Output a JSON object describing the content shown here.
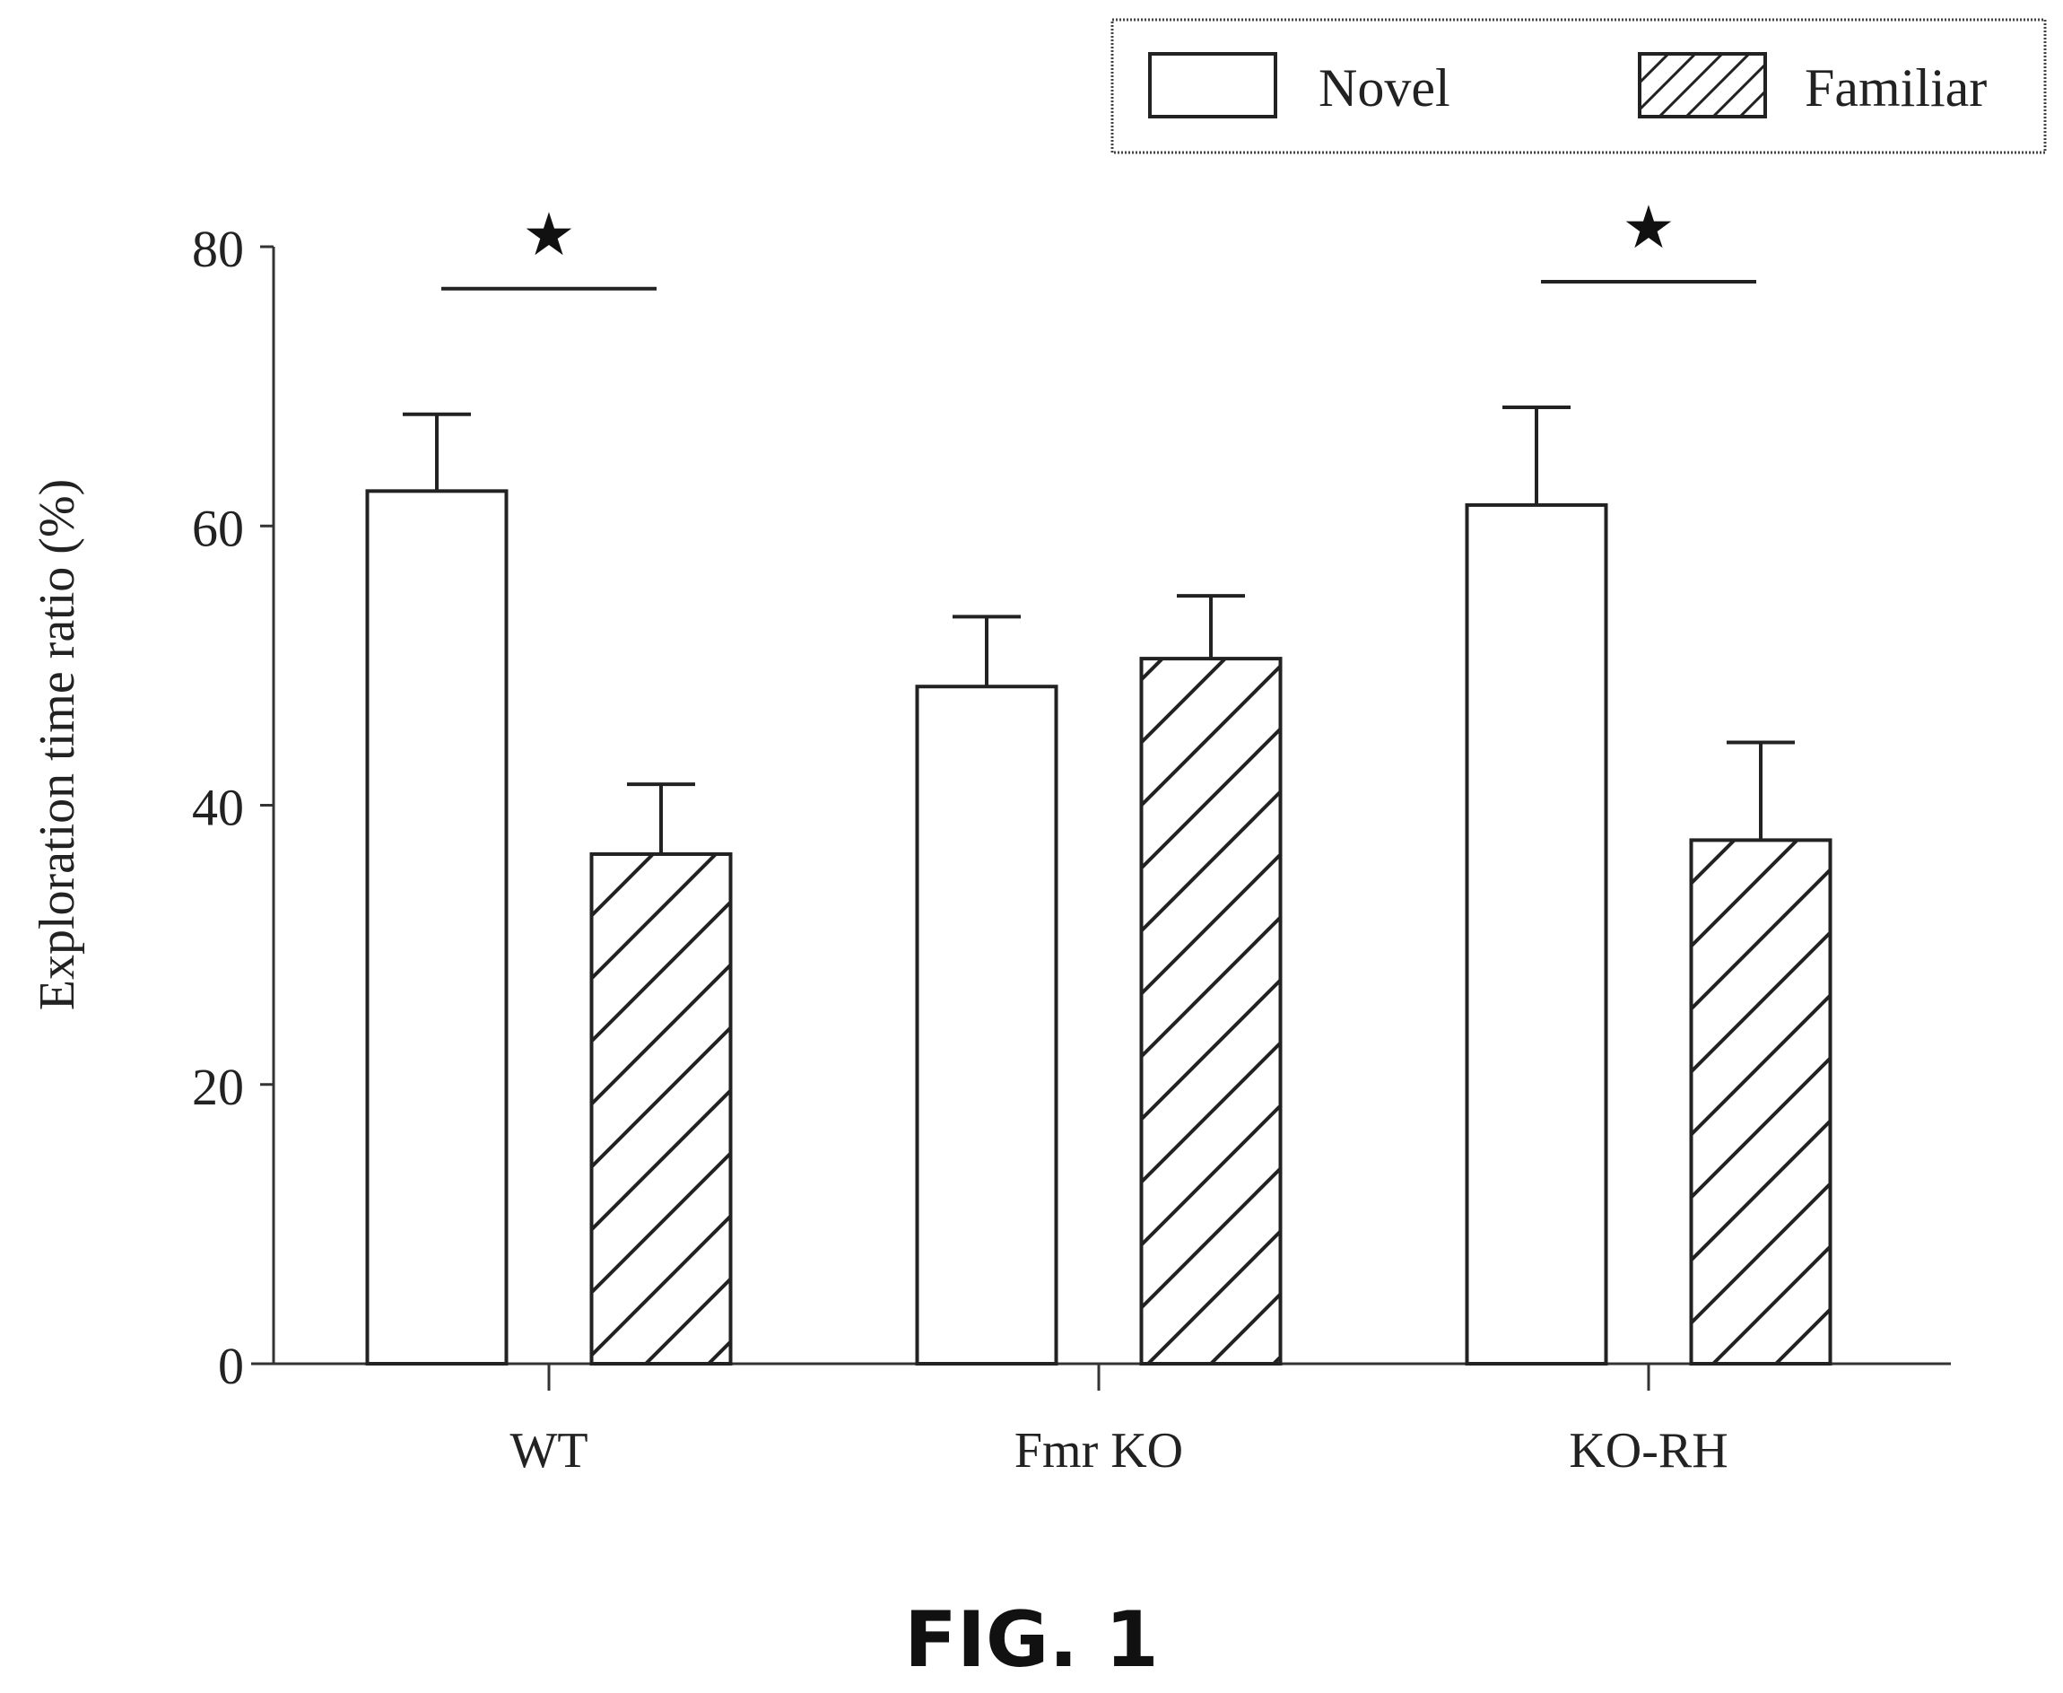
{
  "figure_label": "FIG. 1",
  "chart_data": {
    "type": "bar",
    "ylabel": "Exploration time ratio (%)",
    "xlabel": "",
    "ylim": [
      0,
      80
    ],
    "yticks": [
      0,
      20,
      40,
      60,
      80
    ],
    "categories": [
      "WT",
      "Fmr KO",
      "KO-RH"
    ],
    "series": [
      {
        "name": "Novel",
        "style": "open",
        "values": [
          62.5,
          48.5,
          61.5
        ],
        "errors": [
          5.5,
          5.0,
          7.0
        ]
      },
      {
        "name": "Familiar",
        "style": "hatched",
        "values": [
          36.5,
          50.5,
          37.5
        ],
        "errors": [
          5.0,
          4.5,
          7.0
        ]
      }
    ],
    "significance": [
      {
        "category": "WT",
        "symbol": "★"
      },
      {
        "category": "KO-RH",
        "symbol": "★"
      }
    ],
    "legend_position": "top-right",
    "grid": false,
    "colors": {
      "stroke": "#222222",
      "background": "#ffffff"
    }
  }
}
